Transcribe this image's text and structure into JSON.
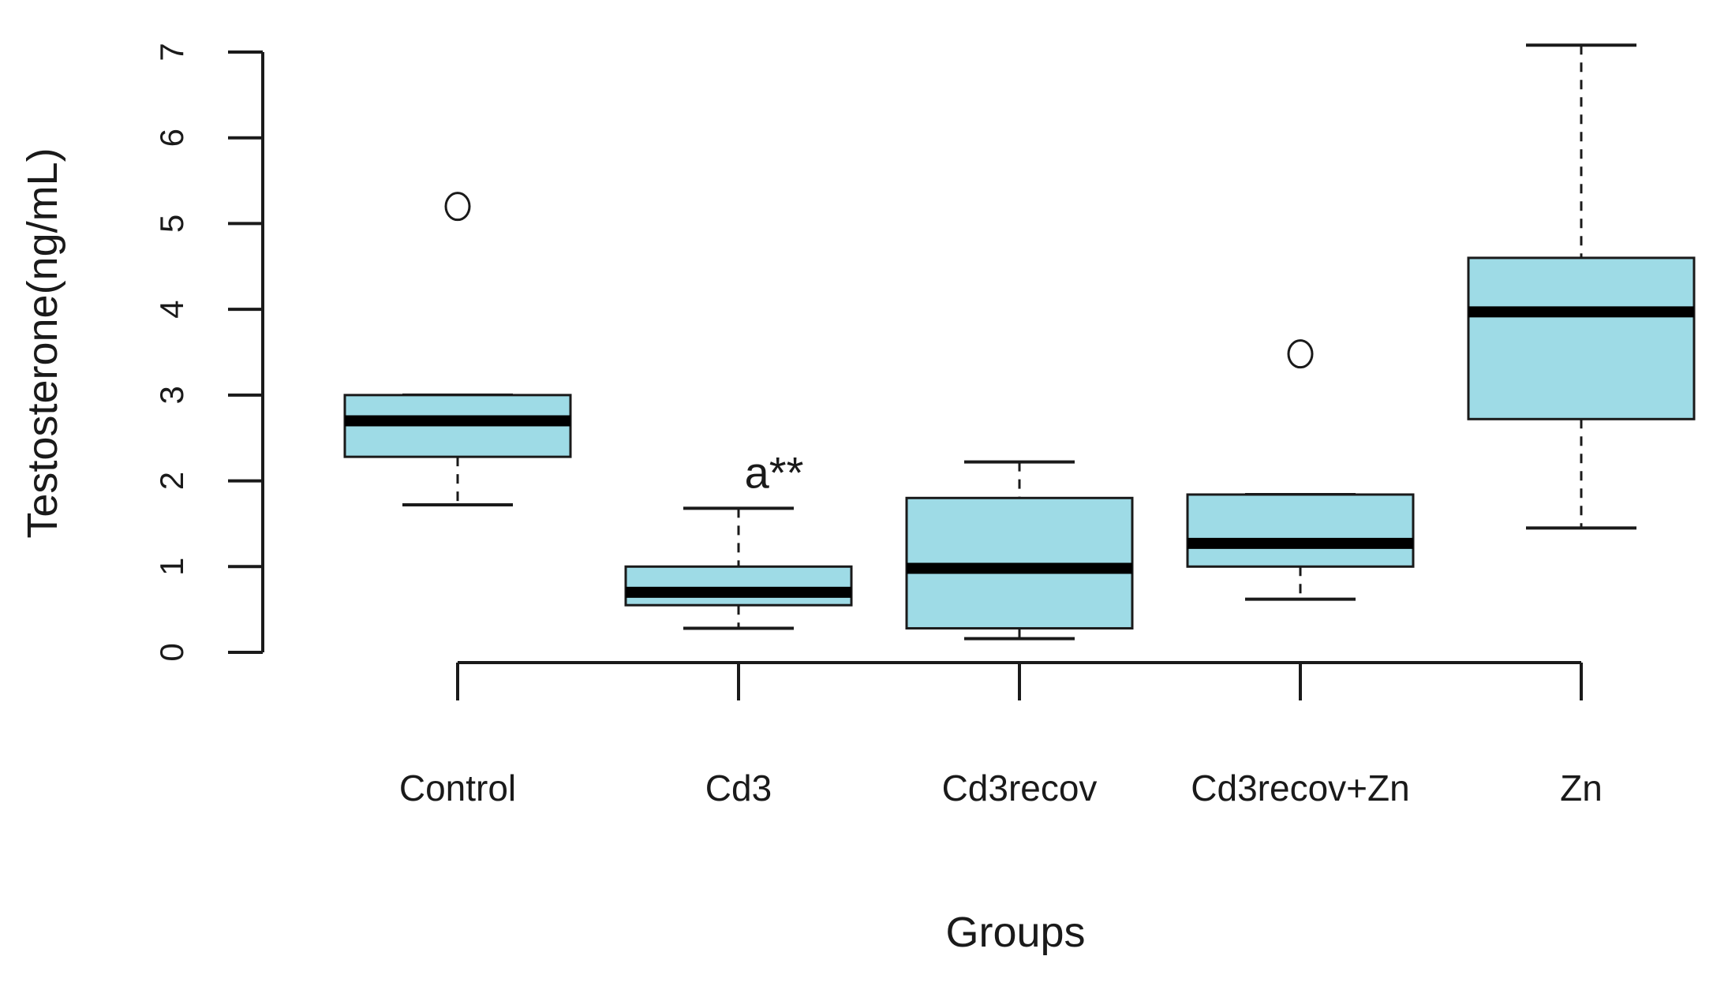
{
  "chart_data": {
    "type": "boxplot",
    "title": "",
    "xlabel": "Groups",
    "ylabel": "Testosterone(ng/mL)",
    "ylim": [
      0,
      7
    ],
    "yticks": [
      "0",
      "1",
      "2",
      "3",
      "4",
      "5",
      "6",
      "7"
    ],
    "categories": [
      "Control",
      "Cd3",
      "Cd3recov",
      "Cd3recov+Zn",
      "Zn"
    ],
    "series": [
      {
        "name": "Control",
        "whisker_low": 1.72,
        "q1": 2.28,
        "median": 2.7,
        "q3": 3.0,
        "whisker_high": 3.0,
        "outliers": [
          5.2
        ]
      },
      {
        "name": "Cd3",
        "whisker_low": 0.28,
        "q1": 0.55,
        "median": 0.7,
        "q3": 1.0,
        "whisker_high": 1.68,
        "outliers": []
      },
      {
        "name": "Cd3recov",
        "whisker_low": 0.16,
        "q1": 0.28,
        "median": 0.98,
        "q3": 1.8,
        "whisker_high": 2.22,
        "outliers": []
      },
      {
        "name": "Cd3recov+Zn",
        "whisker_low": 0.62,
        "q1": 1.0,
        "median": 1.27,
        "q3": 1.84,
        "whisker_high": 1.84,
        "outliers": [
          3.48
        ]
      },
      {
        "name": "Zn",
        "whisker_low": 1.45,
        "q1": 2.72,
        "median": 3.97,
        "q3": 4.6,
        "whisker_high": 7.08,
        "outliers": []
      }
    ],
    "annotations": [
      {
        "text": "a**",
        "category": "Cd3",
        "y": 2.1
      }
    ],
    "box_color": "#9edbe6",
    "line_color": "#1a1a1a"
  }
}
